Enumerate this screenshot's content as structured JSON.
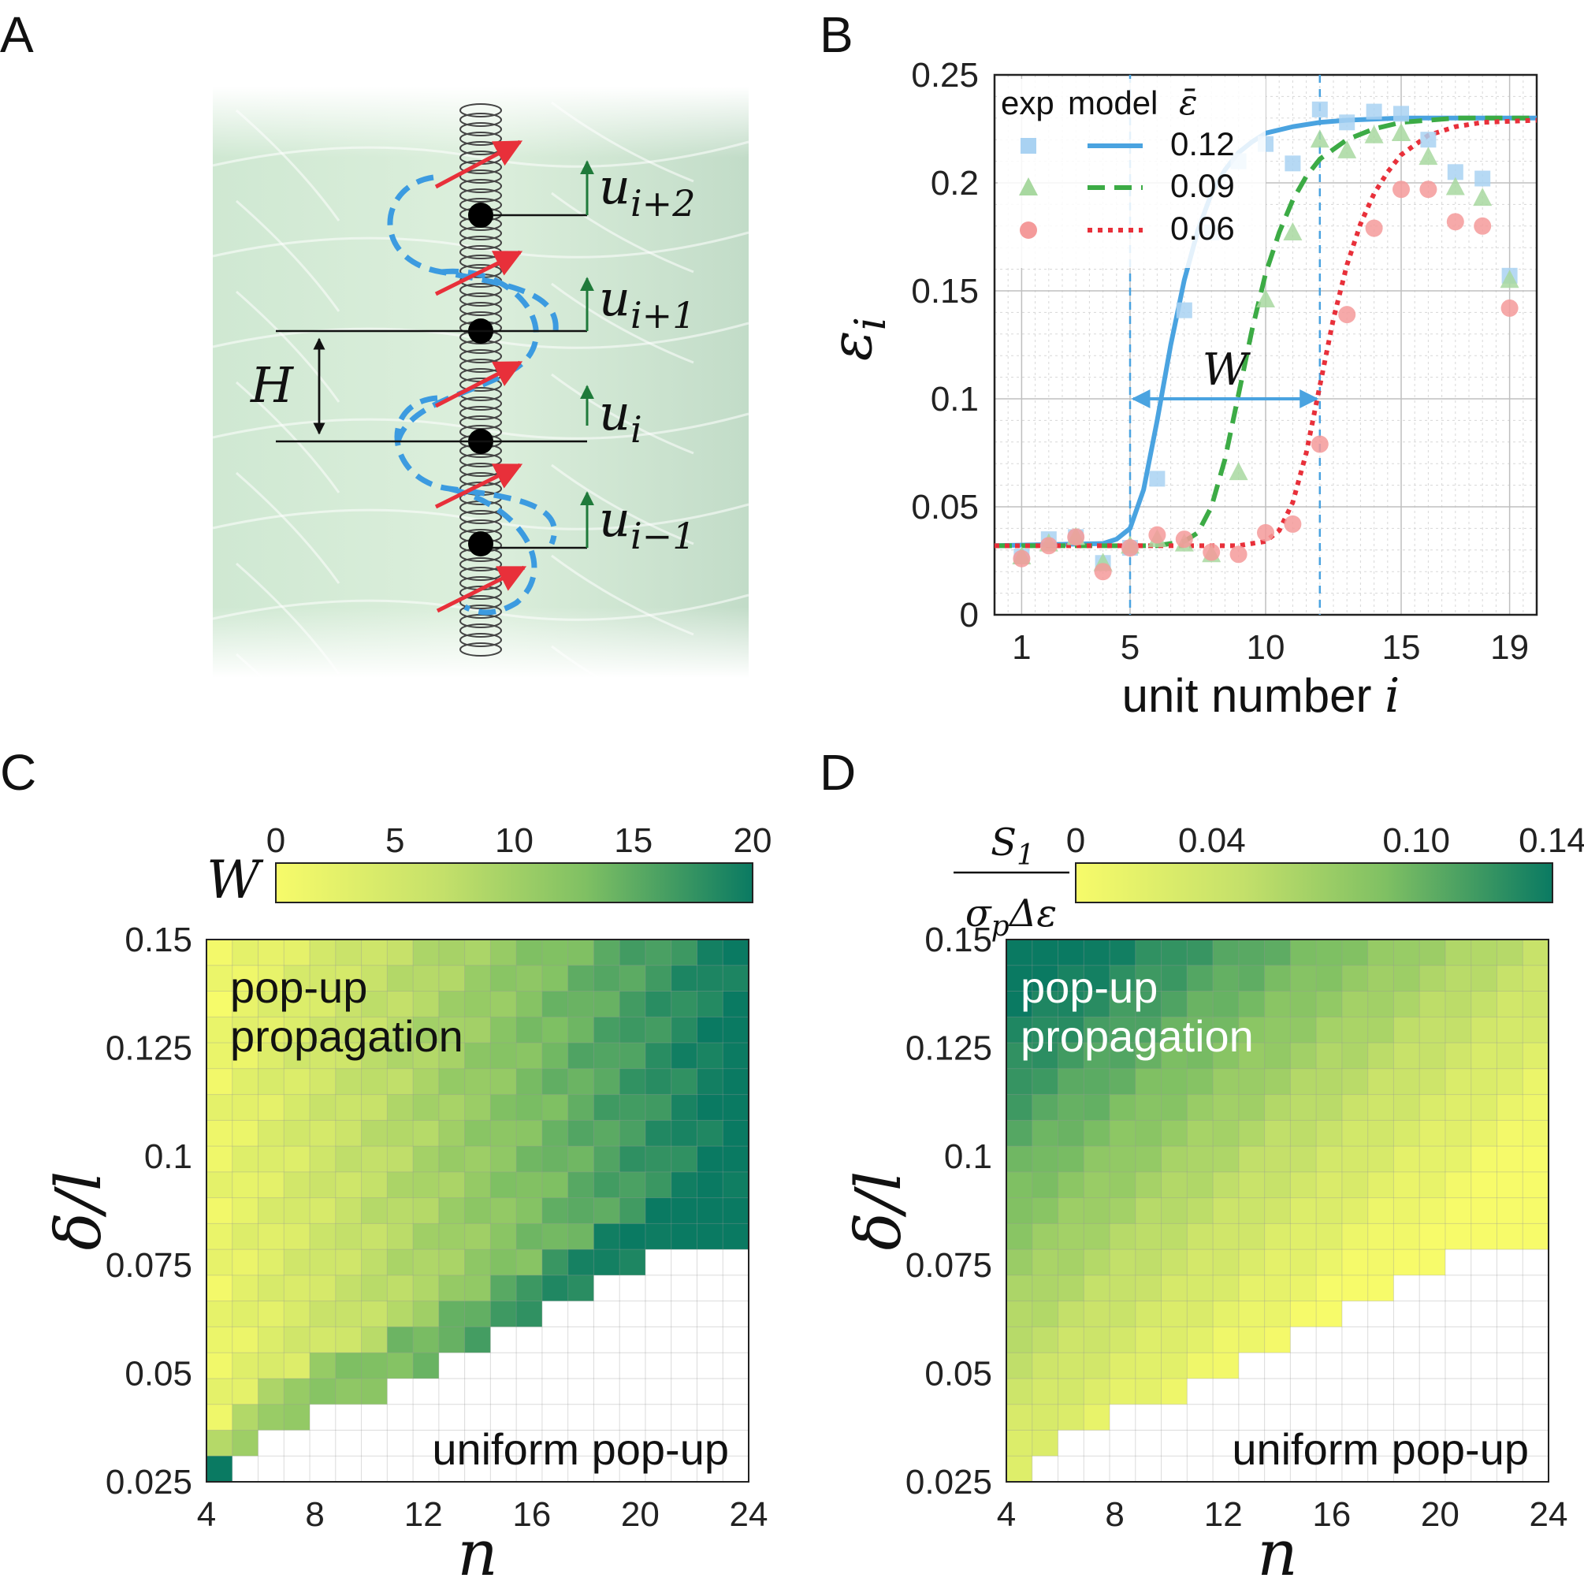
{
  "panels": {
    "A": {
      "label": "A",
      "labels": {
        "u_ip2": "u",
        "u_ip2_sub": "i+2",
        "u_ip1": "u",
        "u_ip1_sub": "i+1",
        "u_i": "u",
        "u_i_sub": "i",
        "u_im1": "u",
        "u_im1_sub": "i−1",
        "H": "H"
      }
    },
    "B": {
      "label": "B"
    },
    "C": {
      "label": "C"
    },
    "D": {
      "label": "D"
    }
  },
  "colors": {
    "blue": "#4aa3e0",
    "green": "#3cab45",
    "red": "#e8303a",
    "light_blue": "#a9d2f2",
    "light_green": "#a8d8a0",
    "light_red": "#f49a9a",
    "cmap_low": "#f7fb6a",
    "cmap_mid": "#8ec95b",
    "cmap_high": "#0a7a62",
    "empty_cell": "#ffffff"
  },
  "chart_data": [
    {
      "id": "B",
      "type": "scatter",
      "xlabel": "unit number",
      "xlabel_var": "i",
      "ylabel": "ε",
      "ylabel_sub": "i",
      "xlim": [
        0,
        20
      ],
      "ylim": [
        0,
        0.25
      ],
      "xticks": [
        1,
        5,
        10,
        15,
        19
      ],
      "yticks": [
        0,
        0.05,
        0.1,
        0.15,
        0.2,
        0.25
      ],
      "ytick_labels": [
        "0",
        "0.05",
        "0.1",
        "0.15",
        "0.2",
        "0.25"
      ],
      "grid": true,
      "legend": {
        "position": "top-left",
        "header_exp": "exp",
        "header_model": "model",
        "header_symbol": "ε̄",
        "entries": [
          "0.12",
          "0.09",
          "0.06"
        ]
      },
      "annotation": {
        "text": "W",
        "from_x": 5,
        "to_x": 12,
        "y": 0.1
      },
      "vlines": [
        5,
        12
      ],
      "series": [
        {
          "name": "0.12",
          "marker": "square",
          "x": [
            1,
            2,
            3,
            4,
            5,
            6,
            7,
            8,
            9,
            10,
            11,
            12,
            13,
            14,
            15,
            16,
            17,
            18,
            19
          ],
          "y": [
            0.027,
            0.035,
            0.036,
            0.024,
            0.031,
            0.063,
            0.141,
            0.177,
            0.21,
            0.218,
            0.209,
            0.234,
            0.228,
            0.233,
            0.232,
            0.22,
            0.205,
            0.202,
            0.157
          ],
          "model_x": [
            0,
            4,
            4.5,
            5,
            5.5,
            6,
            6.5,
            7,
            7.5,
            8,
            8.5,
            9,
            9.5,
            10,
            11,
            12,
            13,
            15,
            17,
            19,
            20
          ],
          "model_y": [
            0.032,
            0.033,
            0.035,
            0.04,
            0.058,
            0.09,
            0.125,
            0.155,
            0.178,
            0.195,
            0.206,
            0.214,
            0.219,
            0.223,
            0.226,
            0.228,
            0.229,
            0.23,
            0.23,
            0.23,
            0.23
          ]
        },
        {
          "name": "0.09",
          "marker": "triangle",
          "x": [
            1,
            2,
            3,
            4,
            5,
            6,
            7,
            8,
            9,
            10,
            11,
            12,
            13,
            14,
            15,
            16,
            17,
            18,
            19
          ],
          "y": [
            0.027,
            0.033,
            0.036,
            0.024,
            0.032,
            0.035,
            0.033,
            0.028,
            0.066,
            0.146,
            0.177,
            0.22,
            0.215,
            0.222,
            0.223,
            0.212,
            0.198,
            0.193,
            0.155
          ],
          "model_x": [
            0,
            6,
            7,
            7.5,
            8,
            8.5,
            9,
            9.5,
            10,
            10.5,
            11,
            11.5,
            12,
            13,
            14,
            15,
            17,
            20
          ],
          "model_y": [
            0.032,
            0.032,
            0.034,
            0.038,
            0.05,
            0.072,
            0.102,
            0.132,
            0.158,
            0.177,
            0.192,
            0.203,
            0.211,
            0.22,
            0.225,
            0.228,
            0.23,
            0.23
          ]
        },
        {
          "name": "0.06",
          "marker": "circle",
          "x": [
            1,
            2,
            3,
            4,
            5,
            6,
            7,
            8,
            9,
            10,
            11,
            12,
            13,
            14,
            15,
            16,
            17,
            18,
            19
          ],
          "y": [
            0.026,
            0.032,
            0.036,
            0.02,
            0.031,
            0.037,
            0.035,
            0.029,
            0.028,
            0.038,
            0.042,
            0.079,
            0.139,
            0.179,
            0.197,
            0.197,
            0.182,
            0.18,
            0.142
          ],
          "model_x": [
            0,
            9,
            10,
            10.5,
            11,
            11.5,
            12,
            12.5,
            13,
            13.5,
            14,
            14.5,
            15,
            16,
            17,
            18,
            20
          ],
          "model_y": [
            0.032,
            0.032,
            0.034,
            0.039,
            0.052,
            0.075,
            0.106,
            0.137,
            0.162,
            0.181,
            0.195,
            0.205,
            0.213,
            0.222,
            0.226,
            0.228,
            0.229
          ]
        }
      ]
    },
    {
      "id": "C",
      "type": "heatmap",
      "xlabel": "n",
      "ylabel": "δ/l",
      "x_range": [
        4,
        24
      ],
      "y_range": [
        0.025,
        0.15
      ],
      "xticks": [
        4,
        8,
        12,
        16,
        20,
        24
      ],
      "ytick_labels": [
        "0.15",
        "0.125",
        "0.1",
        "0.075",
        "0.05",
        "0.025"
      ],
      "yticks": [
        0.15,
        0.125,
        0.1,
        0.075,
        0.05,
        0.025
      ],
      "colorbar": {
        "label": "W",
        "ticks": [
          0,
          5,
          10,
          15,
          20
        ],
        "tick_labels": [
          "0",
          "5",
          "10",
          "15",
          "20"
        ],
        "range": [
          0,
          20
        ]
      },
      "region_labels": {
        "top_line1": "pop-up",
        "top_line2": "propagation",
        "bottom": "uniform pop-up"
      },
      "cols": 21,
      "rows": 21,
      "boundary_first_valid_row_per_col": [
        0,
        1,
        2,
        2,
        3,
        3,
        3,
        4,
        4,
        5,
        5,
        6,
        6,
        7,
        7,
        8,
        8,
        9,
        9,
        9,
        9
      ],
      "value_model": "W increases with n; uniform pop-up region below boundary has no value"
    },
    {
      "id": "D",
      "type": "heatmap",
      "xlabel": "n",
      "ylabel": "δ/l",
      "x_range": [
        4,
        24
      ],
      "y_range": [
        0.025,
        0.15
      ],
      "xticks": [
        4,
        8,
        12,
        16,
        20,
        24
      ],
      "ytick_labels": [
        "0.15",
        "0.125",
        "0.1",
        "0.075",
        "0.05",
        "0.025"
      ],
      "yticks": [
        0.15,
        0.125,
        0.1,
        0.075,
        0.05,
        0.025
      ],
      "colorbar": {
        "label_num": "S",
        "label_num_sub": "1",
        "label_den": "σ",
        "label_den_sub": "p",
        "label_den_rest": "Δε",
        "ticks": [
          0,
          0.04,
          0.1,
          0.14
        ],
        "tick_labels": [
          "0",
          "0.04",
          "0.10",
          "0.14"
        ],
        "range": [
          0,
          0.14
        ]
      },
      "region_labels": {
        "top_line1": "pop-up",
        "top_line2": "propagation",
        "bottom": "uniform pop-up"
      },
      "cols": 21,
      "rows": 21,
      "boundary_first_valid_row_per_col": [
        0,
        1,
        2,
        2,
        3,
        3,
        3,
        4,
        4,
        5,
        5,
        6,
        6,
        7,
        7,
        8,
        8,
        9,
        9,
        9,
        9
      ]
    }
  ]
}
